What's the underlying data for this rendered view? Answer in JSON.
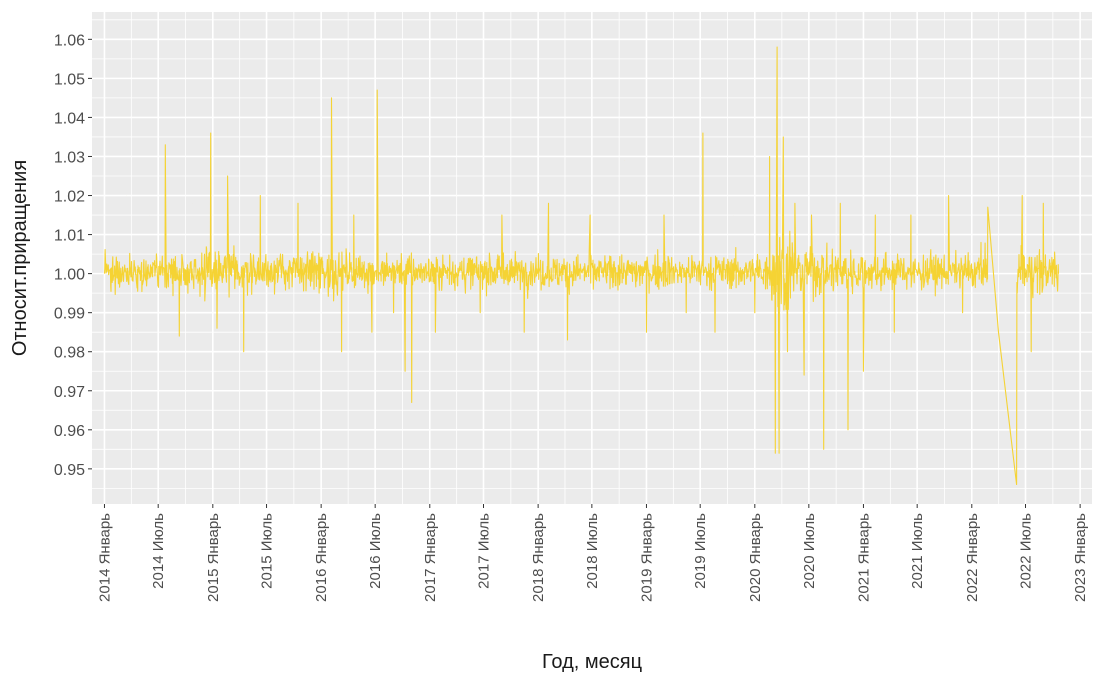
{
  "chart_data": {
    "type": "line",
    "xlabel": "Год, месяц",
    "ylabel": "Относит.приращения",
    "ylim": [
      0.941,
      1.067
    ],
    "xlim": [
      "2013-11-20",
      "2023-02-10"
    ],
    "grid": true,
    "line_color": "#F5D334",
    "panel_color": "#EBEBEB",
    "y_ticks": [
      0.95,
      0.96,
      0.97,
      0.98,
      0.99,
      1.0,
      1.01,
      1.02,
      1.03,
      1.04,
      1.05,
      1.06
    ],
    "y_tick_labels": [
      "0.95",
      "0.96",
      "0.97",
      "0.98",
      "0.99",
      "1.00",
      "1.01",
      "1.02",
      "1.03",
      "1.04",
      "1.05",
      "1.06"
    ],
    "x_ticks": [
      "2014-01-01",
      "2014-07-01",
      "2015-01-01",
      "2015-07-01",
      "2016-01-01",
      "2016-07-01",
      "2017-01-01",
      "2017-07-01",
      "2018-01-01",
      "2018-07-01",
      "2019-01-01",
      "2019-07-01",
      "2020-01-01",
      "2020-07-01",
      "2021-01-01",
      "2021-07-01",
      "2022-01-01",
      "2022-07-01",
      "2023-01-01"
    ],
    "x_tick_labels": [
      "2014 Январь",
      "2014 Июль",
      "2015 Январь",
      "2015 Июль",
      "2016 Январь",
      "2016 Июль",
      "2017 Январь",
      "2017 Июль",
      "2018 Январь",
      "2018 Июль",
      "2019 Январь",
      "2019 Июль",
      "2020 Январь",
      "2020 Июль",
      "2021 Январь",
      "2021 Июль",
      "2022 Январь",
      "2022 Июль",
      "2023 Январь"
    ],
    "series": [
      {
        "x": [
          "2014-01-01",
          "2014-02-15",
          "2014-03-15",
          "2014-04-20",
          "2014-06-01",
          "2014-07-25",
          "2014-09-10",
          "2014-10-25",
          "2014-12-05",
          "2014-12-25",
          "2015-01-15",
          "2015-02-20",
          "2015-04-15",
          "2015-06-10",
          "2015-08-15",
          "2015-10-15",
          "2015-12-25",
          "2016-02-05",
          "2016-03-10",
          "2016-04-20",
          "2016-06-20",
          "2016-07-08",
          "2016-09-01",
          "2016-10-10",
          "2016-11-01",
          "2016-11-20",
          "2017-01-20",
          "2017-04-01",
          "2017-06-20",
          "2017-09-01",
          "2017-11-15",
          "2018-02-05",
          "2018-04-10",
          "2018-06-25",
          "2018-09-01",
          "2018-10-20",
          "2019-01-01",
          "2019-03-01",
          "2019-05-15",
          "2019-07-10",
          "2019-08-20",
          "2019-10-20",
          "2020-01-01",
          "2020-02-20",
          "2020-03-10",
          "2020-03-16",
          "2020-03-23",
          "2020-04-06",
          "2020-04-20",
          "2020-05-15",
          "2020-06-15",
          "2020-07-10",
          "2020-08-20",
          "2020-10-15",
          "2020-11-10",
          "2021-01-01",
          "2021-02-10",
          "2021-04-15",
          "2021-06-10",
          "2021-08-15",
          "2021-10-15",
          "2021-12-01",
          "2022-02-01",
          "2022-02-24",
          "2022-04-01",
          "2022-06-01",
          "2022-06-20",
          "2022-07-20",
          "2022-08-30",
          "2022-10-20"
        ],
        "y": [
          1.0,
          0.994,
          1.02,
          0.986,
          1.015,
          1.033,
          0.984,
          1.018,
          0.993,
          1.036,
          0.986,
          1.025,
          0.98,
          1.02,
          0.976,
          1.018,
          0.995,
          1.045,
          0.98,
          1.015,
          0.985,
          1.047,
          0.99,
          0.975,
          0.967,
          1.015,
          0.985,
          1.02,
          0.99,
          1.015,
          0.985,
          1.018,
          0.983,
          1.015,
          0.99,
          1.029,
          0.985,
          1.015,
          0.99,
          1.036,
          0.985,
          1.015,
          0.99,
          1.03,
          0.954,
          1.058,
          0.954,
          1.035,
          0.98,
          1.018,
          0.974,
          1.015,
          0.955,
          1.018,
          0.96,
          0.975,
          1.015,
          0.985,
          1.015,
          0.99,
          1.02,
          0.99,
          1.008,
          1.017,
          0.985,
          0.946,
          1.02,
          0.98,
          1.018,
          1.0
        ]
      }
    ]
  }
}
